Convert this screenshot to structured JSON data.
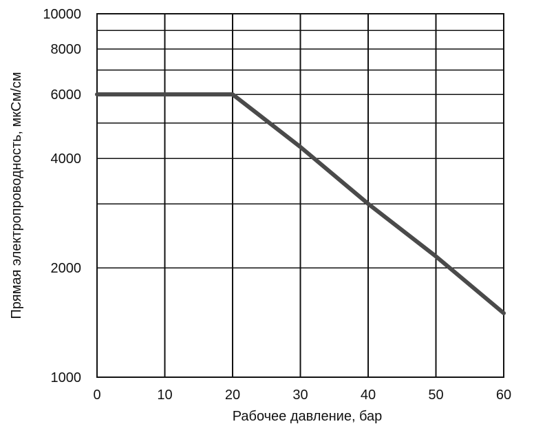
{
  "chart_data": {
    "type": "line",
    "title": "",
    "xlabel": "Рабочее давление, бар",
    "ylabel": "Прямая электропроводность, мкСм/см",
    "y_scale": "log",
    "xlim": [
      0,
      60
    ],
    "ylim": [
      1000,
      10000
    ],
    "x_ticks": [
      0,
      10,
      20,
      30,
      40,
      50,
      60
    ],
    "x_tick_labels": [
      "0",
      "10",
      "20",
      "30",
      "40",
      "50",
      "60"
    ],
    "y_ticks": [
      1000,
      2000,
      4000,
      6000,
      8000,
      10000
    ],
    "y_tick_labels": [
      "1000",
      "2000",
      "4000",
      "6000",
      "8000",
      "10000"
    ],
    "y_gridlines": [
      2000,
      3000,
      4000,
      5000,
      6000,
      7000,
      8000,
      9000,
      10000
    ],
    "x_gridlines": [
      10,
      20,
      30,
      40,
      50,
      60
    ],
    "grid": true,
    "series": [
      {
        "x": [
          0,
          20,
          30,
          40,
          50,
          60
        ],
        "y": [
          6000,
          6000,
          4300,
          3000,
          2150,
          1500
        ]
      }
    ],
    "colors": {
      "line": "#4a4a4a",
      "grid": "#111111",
      "background": "#ffffff"
    }
  }
}
